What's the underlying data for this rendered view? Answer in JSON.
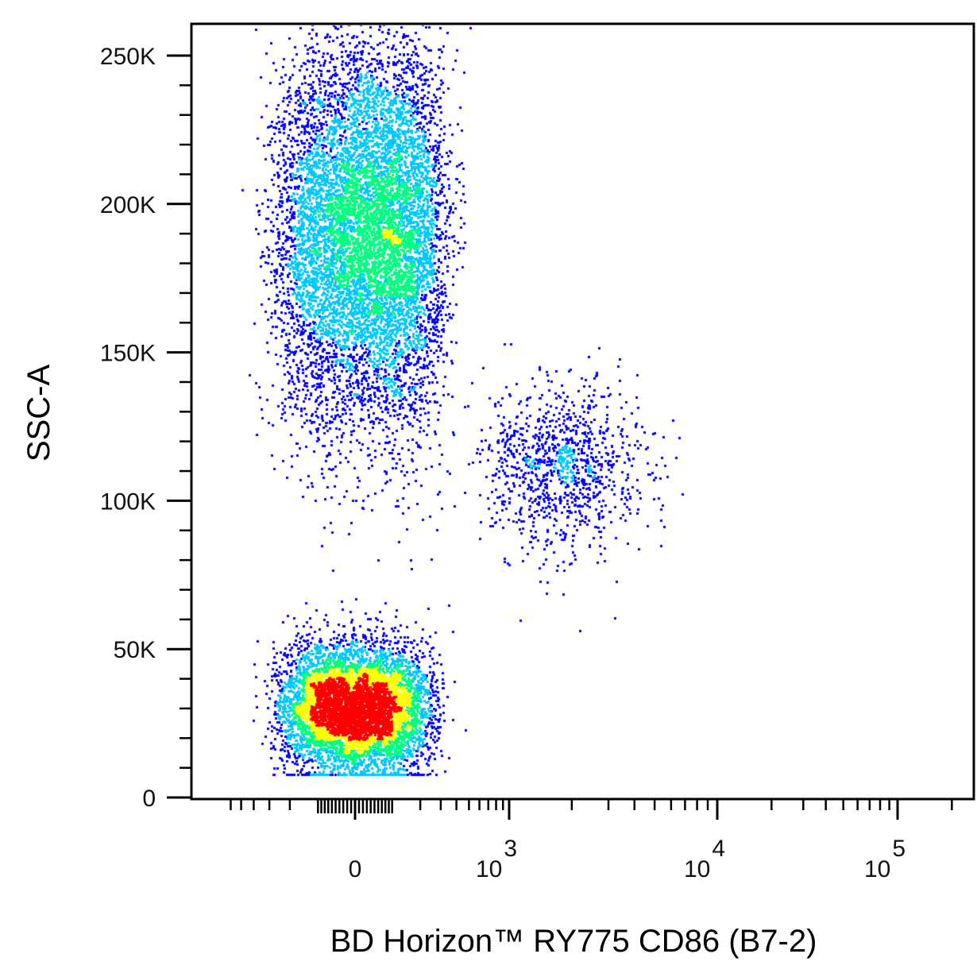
{
  "chart_data": {
    "type": "scatter",
    "subtype": "flow-cytometry-pseudocolor-density",
    "title": "",
    "xlabel": "BD Horizon™ RY775  CD86 (B7-2)",
    "ylabel": "SSC-A",
    "x_scale": "biexponential",
    "y_scale": "linear",
    "ylim": [
      0,
      260000
    ],
    "y_ticks": [
      {
        "value": 0,
        "label": "0"
      },
      {
        "value": 50000,
        "label": "50K"
      },
      {
        "value": 100000,
        "label": "100K"
      },
      {
        "value": 150000,
        "label": "150K"
      },
      {
        "value": 200000,
        "label": "200K"
      },
      {
        "value": 250000,
        "label": "250K"
      }
    ],
    "x_ticks": [
      {
        "value": 0,
        "label": "0",
        "sup": ""
      },
      {
        "value": 1000,
        "label": "10",
        "sup": "3"
      },
      {
        "value": 10000,
        "label": "10",
        "sup": "4"
      },
      {
        "value": 100000,
        "label": "10",
        "sup": "5"
      }
    ],
    "grid": false,
    "legend": "none",
    "density_colors": [
      "#0000ff",
      "#00c8ff",
      "#00ff80",
      "#ffff00",
      "#ff0000"
    ],
    "populations": [
      {
        "name": "",
        "x_center": 30,
        "y_center": 190000,
        "x_spread": 130,
        "y_spread": 32000,
        "events": 9000
      },
      {
        "name": "",
        "x_center": 1800,
        "y_center": 112000,
        "x_spread": 0.19,
        "y_spread": 14000,
        "events": 1100
      },
      {
        "name": "",
        "x_center": 0,
        "y_center": 30000,
        "x_spread": 110,
        "y_spread": 11000,
        "events": 6500
      }
    ]
  }
}
